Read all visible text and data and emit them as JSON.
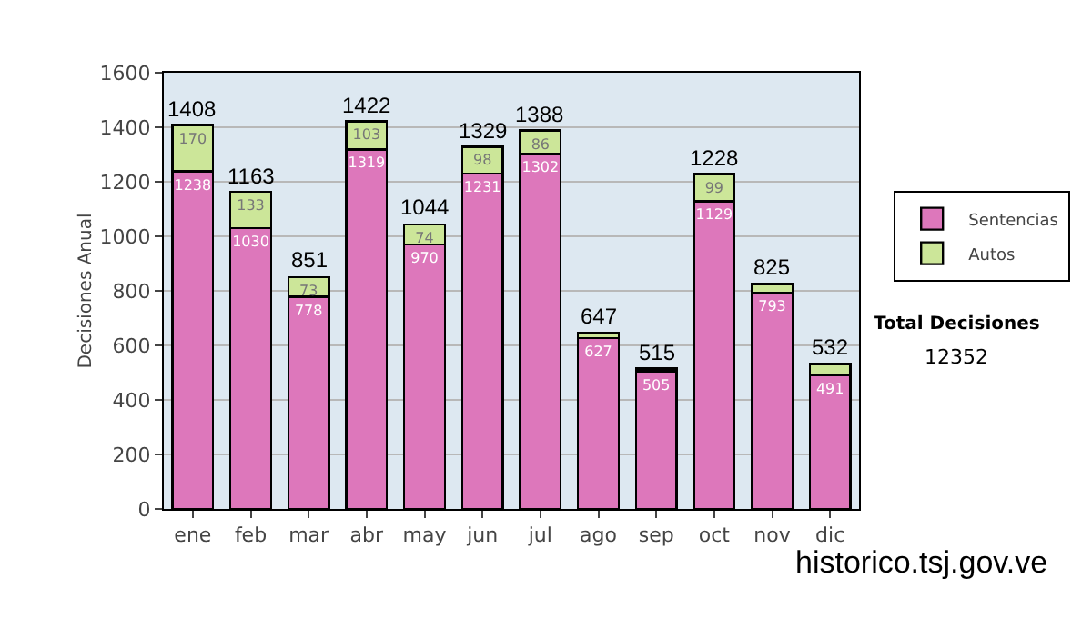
{
  "chart_data": {
    "type": "bar",
    "stacked": true,
    "ylabel": "Decisiones Anual",
    "categories": [
      "ene",
      "feb",
      "mar",
      "abr",
      "may",
      "jun",
      "jul",
      "ago",
      "sep",
      "oct",
      "nov",
      "dic"
    ],
    "series": [
      {
        "name": "Sentencias",
        "color": "#dd77bb",
        "values": [
          1238,
          1030,
          778,
          1319,
          970,
          1231,
          1302,
          627,
          505,
          1129,
          793,
          491
        ],
        "value_labels": [
          "1238",
          "1030",
          "778",
          "1319",
          "970",
          "1231",
          "1302",
          "627",
          "505",
          "1129",
          "793",
          "491"
        ]
      },
      {
        "name": "Autos",
        "color": "#cce699",
        "values": [
          170,
          133,
          73,
          103,
          74,
          98,
          86,
          20,
          10,
          99,
          32,
          41
        ],
        "value_labels": [
          "170",
          "133",
          "73",
          "103",
          "74",
          "98",
          "86",
          null,
          null,
          "99",
          null,
          null
        ]
      }
    ],
    "totals": [
      "1408",
      "1163",
      "851",
      "1422",
      "1044",
      "1329",
      "1388",
      "647",
      "515",
      "1228",
      "825",
      "532"
    ],
    "ylim": [
      0,
      1600
    ],
    "yticks": [
      0,
      200,
      400,
      600,
      800,
      1000,
      1200,
      1400,
      1600
    ],
    "grid": "y",
    "legend": "right",
    "annotations": [
      "Total Decisiones",
      "12352",
      "historico.tsj.gov.ve"
    ]
  }
}
